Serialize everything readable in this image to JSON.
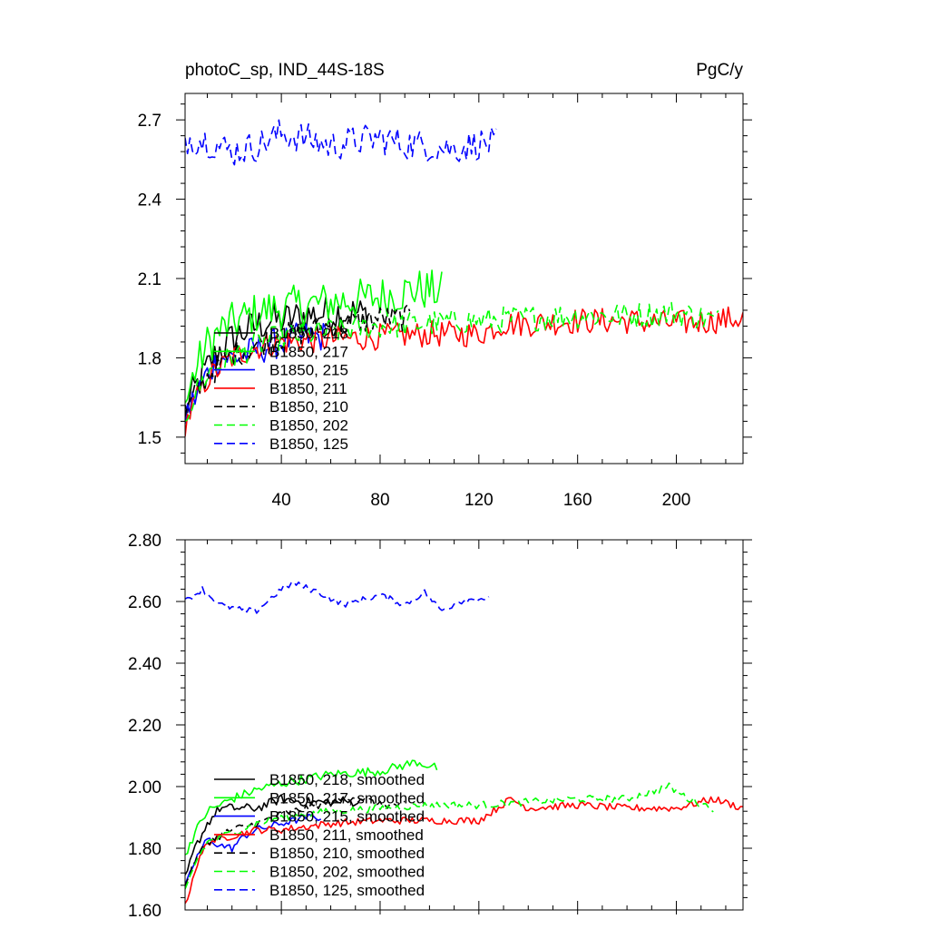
{
  "chart_data": [
    {
      "type": "line",
      "title": "photoC_sp, IND_44S-18S",
      "units": "PgC/y",
      "xlabel": "",
      "ylabel": "",
      "xlim": [
        1,
        227
      ],
      "ylim": [
        1.4,
        2.8
      ],
      "x_ticks": [
        40,
        80,
        120,
        160,
        200
      ],
      "x_tick_labels": [
        "40",
        "80",
        "120",
        "160",
        "200"
      ],
      "y_ticks": [
        1.5,
        1.8,
        2.1,
        2.4,
        2.7
      ],
      "y_tick_labels": [
        "1.5",
        "1.8",
        "2.1",
        "2.4",
        "2.7"
      ],
      "legend_position": "lower-left",
      "series": [
        {
          "name": "B1850, 218",
          "color": "#000000",
          "dash": "solid",
          "end": 75,
          "noise": 0.07,
          "points": [
            [
              1,
              1.6
            ],
            [
              5,
              1.68
            ],
            [
              10,
              1.76
            ],
            [
              15,
              1.83
            ],
            [
              20,
              1.87
            ],
            [
              25,
              1.9
            ],
            [
              30,
              1.92
            ],
            [
              35,
              1.94
            ],
            [
              40,
              1.94
            ],
            [
              50,
              1.96
            ],
            [
              60,
              1.97
            ],
            [
              70,
              1.97
            ],
            [
              75,
              1.96
            ]
          ]
        },
        {
          "name": "B1850, 217",
          "color": "#00ff00",
          "dash": "solid",
          "end": 105,
          "noise": 0.08,
          "points": [
            [
              1,
              1.62
            ],
            [
              5,
              1.75
            ],
            [
              10,
              1.85
            ],
            [
              15,
              1.9
            ],
            [
              20,
              1.93
            ],
            [
              30,
              1.97
            ],
            [
              40,
              1.99
            ],
            [
              60,
              2.01
            ],
            [
              80,
              2.03
            ],
            [
              95,
              2.06
            ],
            [
              105,
              2.05
            ]
          ]
        },
        {
          "name": "B1850, 215",
          "color": "#0000ff",
          "dash": "solid",
          "end": 58,
          "noise": 0.06,
          "points": [
            [
              1,
              1.58
            ],
            [
              5,
              1.65
            ],
            [
              10,
              1.74
            ],
            [
              15,
              1.8
            ],
            [
              20,
              1.8
            ],
            [
              25,
              1.81
            ],
            [
              30,
              1.83
            ],
            [
              40,
              1.86
            ],
            [
              50,
              1.88
            ],
            [
              58,
              1.88
            ]
          ]
        },
        {
          "name": "B1850, 211",
          "color": "#ff0000",
          "dash": "solid",
          "end": 227,
          "noise": 0.05,
          "points": [
            [
              1,
              1.55
            ],
            [
              5,
              1.63
            ],
            [
              10,
              1.72
            ],
            [
              20,
              1.8
            ],
            [
              30,
              1.84
            ],
            [
              40,
              1.86
            ],
            [
              60,
              1.87
            ],
            [
              80,
              1.88
            ],
            [
              100,
              1.89
            ],
            [
              120,
              1.89
            ],
            [
              130,
              1.93
            ],
            [
              140,
              1.93
            ],
            [
              160,
              1.94
            ],
            [
              180,
              1.94
            ],
            [
              200,
              1.93
            ],
            [
              227,
              1.95
            ]
          ]
        },
        {
          "name": "B1850, 210",
          "color": "#000000",
          "dash": "dashed",
          "end": 92,
          "noise": 0.05,
          "points": [
            [
              1,
              1.58
            ],
            [
              5,
              1.66
            ],
            [
              10,
              1.73
            ],
            [
              20,
              1.81
            ],
            [
              30,
              1.85
            ],
            [
              40,
              1.88
            ],
            [
              60,
              1.92
            ],
            [
              80,
              1.95
            ],
            [
              92,
              1.95
            ]
          ]
        },
        {
          "name": "B1850, 202",
          "color": "#00ff00",
          "dash": "dashed",
          "end": 217,
          "noise": 0.05,
          "points": [
            [
              1,
              1.58
            ],
            [
              5,
              1.66
            ],
            [
              10,
              1.74
            ],
            [
              20,
              1.8
            ],
            [
              30,
              1.85
            ],
            [
              40,
              1.88
            ],
            [
              60,
              1.9
            ],
            [
              80,
              1.92
            ],
            [
              100,
              1.93
            ],
            [
              120,
              1.94
            ],
            [
              140,
              1.95
            ],
            [
              160,
              1.96
            ],
            [
              180,
              1.96
            ],
            [
              200,
              1.97
            ],
            [
              217,
              1.94
            ]
          ]
        },
        {
          "name": "B1850, 125",
          "color": "#0000ff",
          "dash": "dashed",
          "end": 127,
          "noise": 0.06,
          "points": [
            [
              1,
              2.63
            ],
            [
              10,
              2.62
            ],
            [
              20,
              2.58
            ],
            [
              30,
              2.6
            ],
            [
              40,
              2.65
            ],
            [
              50,
              2.63
            ],
            [
              60,
              2.6
            ],
            [
              70,
              2.62
            ],
            [
              80,
              2.63
            ],
            [
              90,
              2.61
            ],
            [
              100,
              2.6
            ],
            [
              110,
              2.59
            ],
            [
              120,
              2.61
            ],
            [
              127,
              2.61
            ]
          ]
        }
      ]
    },
    {
      "type": "line",
      "title": "",
      "units": "",
      "xlabel": "",
      "ylabel": "",
      "xlim": [
        1,
        227
      ],
      "ylim": [
        1.6,
        2.8
      ],
      "x_ticks": [
        40,
        80,
        120,
        160,
        200
      ],
      "x_tick_labels": [],
      "y_ticks": [
        1.6,
        1.8,
        2.0,
        2.2,
        2.4,
        2.6,
        2.8
      ],
      "y_tick_labels": [
        "1.60",
        "1.80",
        "2.00",
        "2.20",
        "2.40",
        "2.60",
        "2.80"
      ],
      "legend_position": "lower-left",
      "series": [
        {
          "name": "B1850, 218, smoothed",
          "color": "#000000",
          "dash": "solid",
          "end": 72,
          "noise": 0.015,
          "points": [
            [
              1,
              1.7
            ],
            [
              5,
              1.8
            ],
            [
              10,
              1.88
            ],
            [
              15,
              1.93
            ],
            [
              20,
              1.93
            ],
            [
              30,
              1.93
            ],
            [
              40,
              1.96
            ],
            [
              50,
              1.95
            ],
            [
              60,
              1.95
            ],
            [
              72,
              1.95
            ]
          ]
        },
        {
          "name": "B1850, 217, smoothed",
          "color": "#00ff00",
          "dash": "solid",
          "end": 103,
          "noise": 0.015,
          "points": [
            [
              1,
              1.78
            ],
            [
              5,
              1.85
            ],
            [
              10,
              1.92
            ],
            [
              20,
              1.96
            ],
            [
              30,
              1.99
            ],
            [
              40,
              2.01
            ],
            [
              60,
              2.04
            ],
            [
              80,
              2.05
            ],
            [
              95,
              2.08
            ],
            [
              103,
              2.06
            ]
          ]
        },
        {
          "name": "B1850, 215, smoothed",
          "color": "#0000ff",
          "dash": "solid",
          "end": 56,
          "noise": 0.012,
          "points": [
            [
              1,
              1.67
            ],
            [
              5,
              1.76
            ],
            [
              10,
              1.83
            ],
            [
              15,
              1.81
            ],
            [
              20,
              1.8
            ],
            [
              25,
              1.84
            ],
            [
              30,
              1.86
            ],
            [
              40,
              1.88
            ],
            [
              50,
              1.9
            ],
            [
              56,
              1.9
            ]
          ]
        },
        {
          "name": "B1850, 211, smoothed",
          "color": "#ff0000",
          "dash": "solid",
          "end": 227,
          "noise": 0.012,
          "points": [
            [
              1,
              1.61
            ],
            [
              5,
              1.73
            ],
            [
              10,
              1.82
            ],
            [
              20,
              1.84
            ],
            [
              30,
              1.86
            ],
            [
              40,
              1.86
            ],
            [
              60,
              1.88
            ],
            [
              80,
              1.89
            ],
            [
              100,
              1.89
            ],
            [
              120,
              1.89
            ],
            [
              133,
              1.96
            ],
            [
              140,
              1.93
            ],
            [
              160,
              1.94
            ],
            [
              180,
              1.93
            ],
            [
              200,
              1.93
            ],
            [
              215,
              1.96
            ],
            [
              227,
              1.93
            ]
          ]
        },
        {
          "name": "B1850, 210, smoothed",
          "color": "#000000",
          "dash": "dashed",
          "end": 90,
          "noise": 0.012,
          "points": [
            [
              1,
              1.68
            ],
            [
              5,
              1.76
            ],
            [
              10,
              1.82
            ],
            [
              20,
              1.86
            ],
            [
              30,
              1.88
            ],
            [
              40,
              1.91
            ],
            [
              60,
              1.95
            ],
            [
              70,
              1.97
            ],
            [
              80,
              1.94
            ],
            [
              90,
              1.94
            ]
          ]
        },
        {
          "name": "B1850, 202, smoothed",
          "color": "#00ff00",
          "dash": "dashed",
          "end": 215,
          "noise": 0.012,
          "points": [
            [
              1,
              1.66
            ],
            [
              5,
              1.75
            ],
            [
              10,
              1.82
            ],
            [
              20,
              1.85
            ],
            [
              30,
              1.88
            ],
            [
              40,
              1.9
            ],
            [
              60,
              1.92
            ],
            [
              80,
              1.93
            ],
            [
              100,
              1.94
            ],
            [
              120,
              1.94
            ],
            [
              140,
              1.95
            ],
            [
              160,
              1.96
            ],
            [
              180,
              1.96
            ],
            [
              197,
              2.0
            ],
            [
              205,
              1.96
            ],
            [
              215,
              1.93
            ]
          ]
        },
        {
          "name": "B1850, 125, smoothed",
          "color": "#0000ff",
          "dash": "dashed",
          "end": 124,
          "noise": 0.01,
          "points": [
            [
              1,
              2.6
            ],
            [
              8,
              2.64
            ],
            [
              15,
              2.59
            ],
            [
              25,
              2.57
            ],
            [
              30,
              2.57
            ],
            [
              40,
              2.64
            ],
            [
              45,
              2.66
            ],
            [
              55,
              2.63
            ],
            [
              65,
              2.59
            ],
            [
              80,
              2.62
            ],
            [
              90,
              2.59
            ],
            [
              98,
              2.63
            ],
            [
              105,
              2.57
            ],
            [
              112,
              2.6
            ],
            [
              120,
              2.61
            ],
            [
              124,
              2.61
            ]
          ]
        }
      ]
    }
  ]
}
